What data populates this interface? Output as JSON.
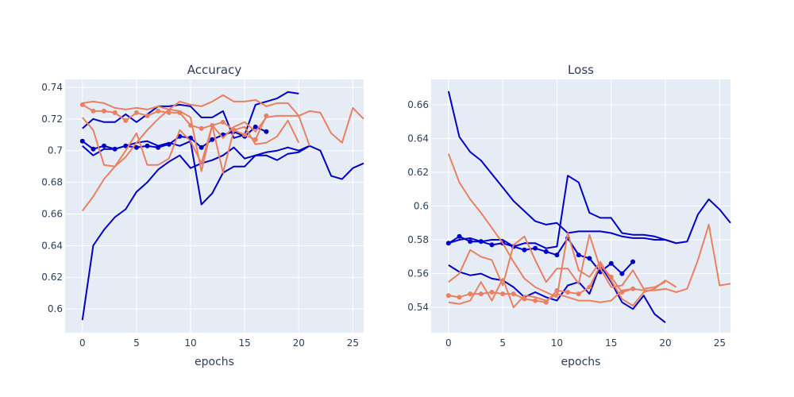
{
  "figure": {
    "background": "#ffffff",
    "plot_bg": "#e5ecf6",
    "grid_color": "#ffffff",
    "text_color": "#2a3f5f"
  },
  "colors": {
    "blue": "#0000cc",
    "salmon": "#ea8060"
  },
  "chart_data": [
    {
      "type": "line",
      "title": "Accuracy",
      "xlabel": "epochs",
      "ylabel": "",
      "xlim": [
        -1.6,
        26
      ],
      "ylim": [
        0.585,
        0.745
      ],
      "xticks": [
        0,
        5,
        10,
        15,
        20,
        25
      ],
      "yticks": [
        0.6,
        0.62,
        0.64,
        0.66,
        0.68,
        0.7,
        0.72,
        0.74
      ],
      "ytick_labels": [
        "0.6",
        "0.62",
        "0.64",
        "0.66",
        "0.68",
        "0.7",
        "0.72",
        "0.74"
      ],
      "grid": true,
      "series": [
        {
          "color": "blue",
          "markers": false,
          "x": [
            0,
            1,
            2,
            3,
            4,
            5,
            6,
            7,
            8,
            9,
            10,
            11,
            12,
            13,
            14,
            15,
            16,
            17,
            18,
            19,
            20
          ],
          "y": [
            0.714,
            0.72,
            0.718,
            0.718,
            0.723,
            0.718,
            0.723,
            0.728,
            0.728,
            0.729,
            0.728,
            0.721,
            0.721,
            0.725,
            0.708,
            0.71,
            0.729,
            0.731,
            0.733,
            0.737,
            0.736
          ]
        },
        {
          "color": "blue",
          "markers": false,
          "x": [
            0,
            1,
            2,
            3,
            4,
            5,
            6,
            7,
            8,
            9,
            10,
            11,
            12,
            13,
            14,
            15,
            16,
            17,
            18,
            19,
            20,
            21,
            22,
            23,
            24,
            25,
            26
          ],
          "y": [
            0.593,
            0.64,
            0.65,
            0.658,
            0.663,
            0.674,
            0.68,
            0.688,
            0.693,
            0.697,
            0.689,
            0.692,
            0.694,
            0.697,
            0.702,
            0.695,
            0.697,
            0.699,
            0.7,
            0.702,
            0.7,
            0.703,
            0.7,
            0.684,
            0.682,
            0.689,
            0.692
          ]
        },
        {
          "color": "blue",
          "markers": false,
          "x": [
            0,
            1,
            2,
            3,
            4,
            5,
            6,
            7,
            8,
            9,
            10,
            11,
            12,
            13,
            14,
            15,
            16,
            17,
            18,
            19,
            20,
            21
          ],
          "y": [
            0.703,
            0.697,
            0.701,
            0.701,
            0.703,
            0.705,
            0.706,
            0.703,
            0.705,
            0.703,
            0.706,
            0.666,
            0.673,
            0.686,
            0.69,
            0.69,
            0.697,
            0.697,
            0.694,
            0.698,
            0.699,
            0.703
          ]
        },
        {
          "color": "blue",
          "markers": true,
          "x": [
            0,
            1,
            2,
            3,
            4,
            5,
            6,
            7,
            8,
            9,
            10,
            11,
            12,
            13,
            14,
            15,
            16,
            17
          ],
          "y": [
            0.706,
            0.701,
            0.703,
            0.701,
            0.703,
            0.702,
            0.703,
            0.702,
            0.704,
            0.709,
            0.708,
            0.702,
            0.707,
            0.71,
            0.712,
            0.709,
            0.715,
            0.712
          ]
        },
        {
          "color": "salmon",
          "markers": false,
          "x": [
            0,
            1,
            2,
            3,
            4,
            5,
            6,
            7,
            8,
            9,
            10,
            11,
            12,
            13,
            14,
            15,
            16,
            17,
            18,
            19,
            20,
            21,
            22,
            23,
            24,
            25,
            26
          ],
          "y": [
            0.73,
            0.731,
            0.73,
            0.727,
            0.726,
            0.727,
            0.726,
            0.728,
            0.726,
            0.731,
            0.729,
            0.728,
            0.731,
            0.735,
            0.731,
            0.731,
            0.732,
            0.728,
            0.73,
            0.73,
            0.722,
            0.725,
            0.724,
            0.711,
            0.705,
            0.727,
            0.72
          ]
        },
        {
          "color": "salmon",
          "markers": false,
          "x": [
            0,
            1,
            2,
            3,
            4,
            5,
            6,
            7,
            8,
            9,
            10,
            11,
            12,
            13,
            14,
            15,
            16,
            17,
            18,
            19,
            20,
            21
          ],
          "y": [
            0.662,
            0.671,
            0.682,
            0.69,
            0.696,
            0.705,
            0.713,
            0.72,
            0.726,
            0.725,
            0.721,
            0.687,
            0.716,
            0.708,
            0.715,
            0.718,
            0.712,
            0.721,
            0.722,
            0.722,
            0.722,
            0.703
          ]
        },
        {
          "color": "salmon",
          "markers": false,
          "x": [
            0,
            1,
            2,
            3,
            4,
            5,
            6,
            7,
            8,
            9,
            10,
            11,
            12,
            13,
            14,
            15,
            16,
            17,
            18,
            19,
            20
          ],
          "y": [
            0.721,
            0.713,
            0.691,
            0.69,
            0.7,
            0.711,
            0.691,
            0.691,
            0.695,
            0.713,
            0.706,
            0.692,
            0.716,
            0.686,
            0.713,
            0.715,
            0.704,
            0.705,
            0.709,
            0.719,
            0.705
          ]
        },
        {
          "color": "salmon",
          "markers": true,
          "x": [
            0,
            1,
            2,
            3,
            4,
            5,
            6,
            7,
            8,
            9,
            10,
            11,
            12,
            13,
            14,
            15,
            16,
            17
          ],
          "y": [
            0.729,
            0.725,
            0.725,
            0.724,
            0.719,
            0.724,
            0.722,
            0.725,
            0.724,
            0.724,
            0.716,
            0.714,
            0.716,
            0.718,
            0.713,
            0.71,
            0.707,
            0.722
          ]
        }
      ]
    },
    {
      "type": "line",
      "title": "Loss",
      "xlabel": "epochs",
      "ylabel": "",
      "xlim": [
        -1.6,
        26
      ],
      "ylim": [
        0.525,
        0.675
      ],
      "xticks": [
        0,
        5,
        10,
        15,
        20,
        25
      ],
      "yticks": [
        0.54,
        0.56,
        0.58,
        0.6,
        0.62,
        0.64,
        0.66
      ],
      "ytick_labels": [
        "0.54",
        "0.56",
        "0.58",
        "0.6",
        "0.62",
        "0.64",
        "0.66"
      ],
      "grid": true,
      "series": [
        {
          "color": "blue",
          "markers": false,
          "x": [
            0,
            1,
            2,
            3,
            4,
            5,
            6,
            7,
            8,
            9,
            10,
            11,
            12,
            13,
            14,
            15,
            16,
            17,
            18,
            19,
            20,
            21,
            22,
            23,
            24,
            25,
            26
          ],
          "y": [
            0.668,
            0.641,
            0.632,
            0.627,
            0.619,
            0.611,
            0.603,
            0.597,
            0.591,
            0.589,
            0.59,
            0.584,
            0.585,
            0.585,
            0.585,
            0.584,
            0.582,
            0.581,
            0.581,
            0.58,
            0.58,
            0.578,
            0.579,
            0.595,
            0.604,
            0.598,
            0.59
          ]
        },
        {
          "color": "blue",
          "markers": false,
          "x": [
            0,
            1,
            2,
            3,
            4,
            5,
            6,
            7,
            8,
            9,
            10,
            11,
            12,
            13,
            14,
            15,
            16,
            17,
            18,
            19,
            20,
            21
          ],
          "y": [
            0.578,
            0.58,
            0.581,
            0.579,
            0.58,
            0.58,
            0.576,
            0.578,
            0.578,
            0.575,
            0.576,
            0.618,
            0.614,
            0.596,
            0.593,
            0.593,
            0.584,
            0.583,
            0.583,
            0.582,
            0.58,
            0.578
          ]
        },
        {
          "color": "blue",
          "markers": false,
          "x": [
            0,
            1,
            2,
            3,
            4,
            5,
            6,
            7,
            8,
            9,
            10,
            11,
            12,
            13,
            14,
            15,
            16,
            17,
            18,
            19,
            20
          ],
          "y": [
            0.565,
            0.561,
            0.559,
            0.56,
            0.557,
            0.556,
            0.552,
            0.546,
            0.549,
            0.546,
            0.544,
            0.553,
            0.555,
            0.548,
            0.565,
            0.555,
            0.543,
            0.539,
            0.547,
            0.536,
            0.531
          ]
        },
        {
          "color": "blue",
          "markers": true,
          "x": [
            0,
            1,
            2,
            3,
            4,
            5,
            6,
            7,
            8,
            9,
            10,
            11,
            12,
            13,
            14,
            15,
            16,
            17
          ],
          "y": [
            0.578,
            0.582,
            0.579,
            0.579,
            0.577,
            0.578,
            0.576,
            0.574,
            0.575,
            0.573,
            0.571,
            0.581,
            0.571,
            0.569,
            0.561,
            0.566,
            0.56,
            0.567
          ]
        },
        {
          "color": "salmon",
          "markers": false,
          "x": [
            0,
            1,
            2,
            3,
            4,
            5,
            6,
            7,
            8,
            9,
            10,
            11,
            12,
            13,
            14,
            15,
            16,
            17,
            18,
            19,
            20,
            21,
            22,
            23,
            24,
            25,
            26
          ],
          "y": [
            0.543,
            0.542,
            0.544,
            0.555,
            0.544,
            0.557,
            0.54,
            0.547,
            0.546,
            0.544,
            0.548,
            0.546,
            0.544,
            0.544,
            0.543,
            0.544,
            0.55,
            0.551,
            0.55,
            0.55,
            0.551,
            0.549,
            0.551,
            0.568,
            0.589,
            0.553,
            0.554
          ]
        },
        {
          "color": "salmon",
          "markers": false,
          "x": [
            0,
            1,
            2,
            3,
            4,
            5,
            6,
            7,
            8,
            9,
            10,
            11,
            12,
            13,
            14,
            15,
            16,
            17,
            18,
            19,
            20,
            21
          ],
          "y": [
            0.631,
            0.614,
            0.604,
            0.596,
            0.587,
            0.578,
            0.567,
            0.557,
            0.552,
            0.549,
            0.546,
            0.584,
            0.562,
            0.558,
            0.567,
            0.556,
            0.545,
            0.541,
            0.549,
            0.551,
            0.556,
            0.552
          ]
        },
        {
          "color": "salmon",
          "markers": false,
          "x": [
            0,
            1,
            2,
            3,
            4,
            5,
            6,
            7,
            8,
            9,
            10,
            11,
            12,
            13,
            14,
            15,
            16,
            17,
            18,
            19,
            20
          ],
          "y": [
            0.555,
            0.56,
            0.574,
            0.57,
            0.568,
            0.553,
            0.577,
            0.582,
            0.568,
            0.555,
            0.563,
            0.563,
            0.554,
            0.583,
            0.563,
            0.552,
            0.553,
            0.562,
            0.551,
            0.552,
            0.555
          ]
        },
        {
          "color": "salmon",
          "markers": true,
          "x": [
            0,
            1,
            2,
            3,
            4,
            5,
            6,
            7,
            8,
            9,
            10,
            11,
            12,
            13,
            14,
            15,
            16,
            17
          ],
          "y": [
            0.547,
            0.546,
            0.548,
            0.548,
            0.549,
            0.548,
            0.548,
            0.545,
            0.544,
            0.543,
            0.55,
            0.549,
            0.548,
            0.552,
            0.565,
            0.558,
            0.549,
            0.551
          ]
        }
      ]
    }
  ]
}
